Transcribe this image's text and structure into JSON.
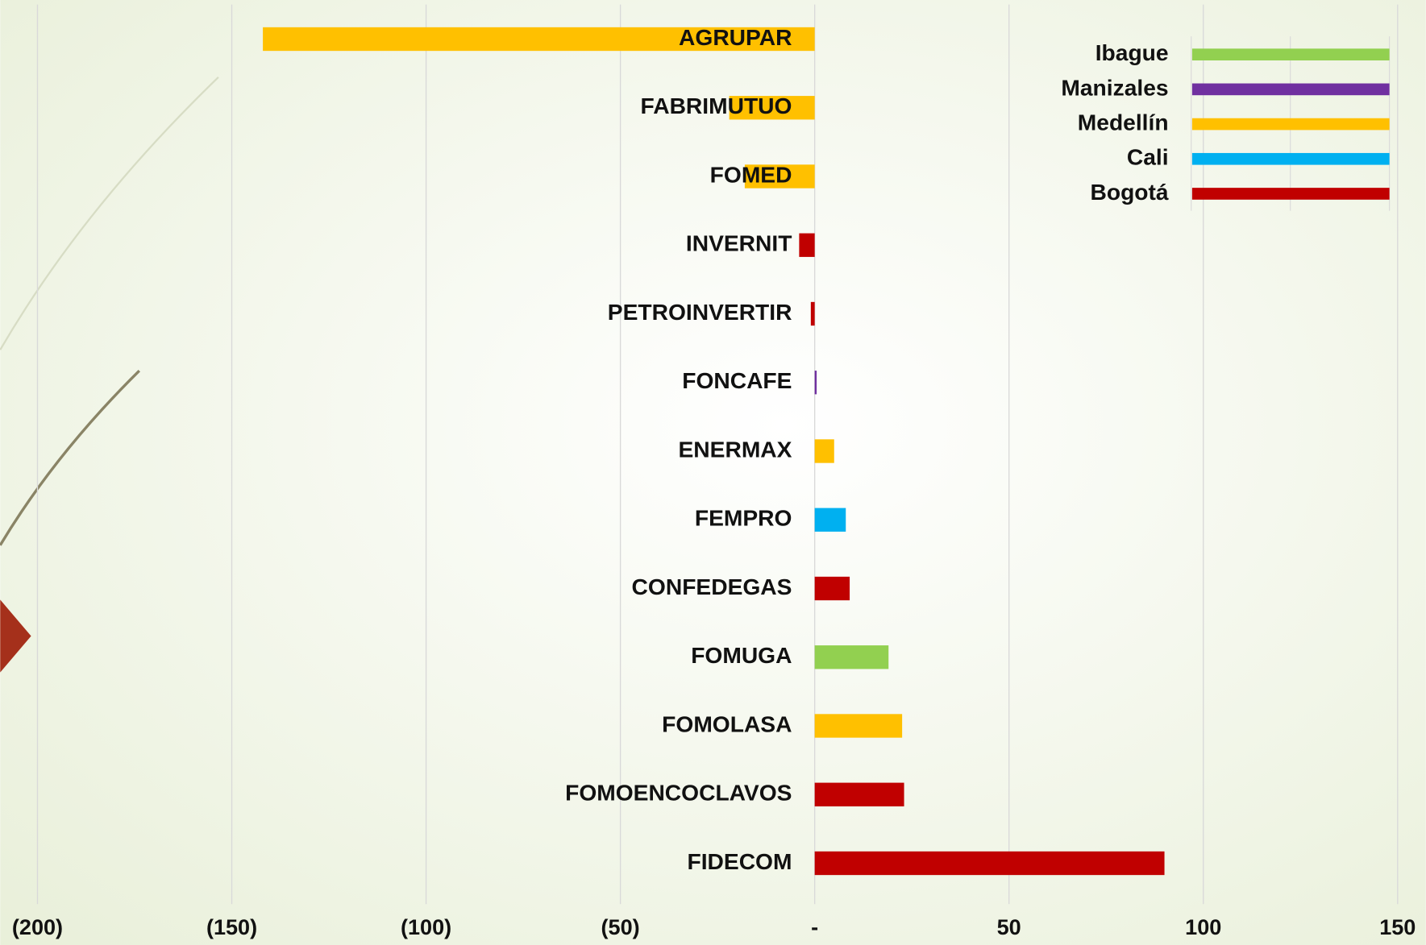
{
  "chart_data": {
    "type": "bar",
    "orientation": "horizontal",
    "categories": [
      "AGRUPAR",
      "FABRIMUTUO",
      "FOMED",
      "INVERNIT",
      "PETROINVERTIR",
      "FONCAFE",
      "ENERMAX",
      "FEMPRO",
      "CONFEDEGAS",
      "FOMUGA",
      "FOMOLASA",
      "FOMOENCOCLAVOS",
      "FIDECOM"
    ],
    "series": [
      {
        "name": "Ibague",
        "color": "#92D050",
        "values": [
          null,
          null,
          null,
          null,
          null,
          null,
          null,
          null,
          null,
          19,
          null,
          null,
          null
        ]
      },
      {
        "name": "Manizales",
        "color": "#7030A0",
        "values": [
          null,
          null,
          null,
          null,
          null,
          0.5,
          null,
          null,
          null,
          null,
          null,
          null,
          null
        ]
      },
      {
        "name": "Medellín",
        "color": "#FFC000",
        "values": [
          -142,
          -22,
          -18,
          null,
          null,
          null,
          5,
          null,
          null,
          null,
          22.5,
          null,
          null
        ]
      },
      {
        "name": "Cali",
        "color": "#00B0F0",
        "values": [
          null,
          null,
          null,
          null,
          null,
          null,
          null,
          8,
          null,
          null,
          null,
          null,
          null
        ]
      },
      {
        "name": "Bogotá",
        "color": "#C00000",
        "values": [
          null,
          null,
          null,
          -4,
          -1,
          null,
          null,
          null,
          9,
          null,
          null,
          23,
          90
        ]
      }
    ],
    "xlim": [
      -200,
      150
    ],
    "xticks": [
      {
        "value": -200,
        "label": "(200)"
      },
      {
        "value": -150,
        "label": "(150)"
      },
      {
        "value": -100,
        "label": "(100)"
      },
      {
        "value": -50,
        "label": "(50)"
      },
      {
        "value": 0,
        "label": "-"
      },
      50,
      100,
      150
    ],
    "grid": true,
    "legend": "top-right"
  }
}
